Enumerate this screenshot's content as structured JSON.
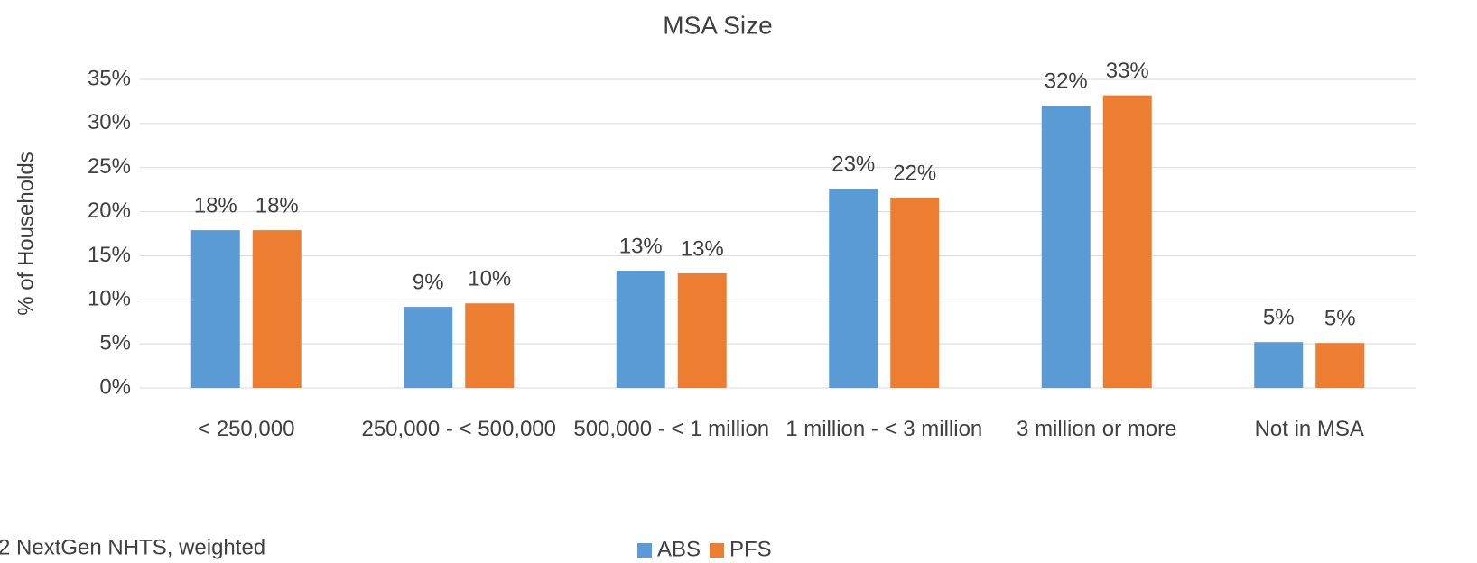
{
  "chart_data": {
    "type": "bar",
    "title": "MSA Size",
    "y_label": "% of Households",
    "note": "2 NextGen NHTS, weighted",
    "categories": [
      "< 250,000",
      "250,000 - < 500,000",
      "500,000 - < 1 million",
      "1 million - < 3 million",
      "3 million or more",
      "Not in MSA"
    ],
    "series": [
      {
        "name": "ABS",
        "color": "#5b9bd5",
        "values": [
          17.9,
          9.2,
          13.3,
          22.6,
          32.0,
          5.2
        ],
        "value_labels": [
          "18%",
          "9%",
          "13%",
          "23%",
          "32%",
          "5%"
        ]
      },
      {
        "name": "PFS",
        "color": "#ed7d31",
        "values": [
          17.9,
          9.6,
          13.0,
          21.6,
          33.2,
          5.1
        ],
        "value_labels": [
          "18%",
          "10%",
          "13%",
          "22%",
          "33%",
          "5%"
        ]
      }
    ],
    "ylim": [
      0,
      35
    ],
    "yticks": [
      {
        "value": 0,
        "label": "0%"
      },
      {
        "value": 5,
        "label": "5%"
      },
      {
        "value": 10,
        "label": "10%"
      },
      {
        "value": 15,
        "label": "15%"
      },
      {
        "value": 20,
        "label": "20%"
      },
      {
        "value": 25,
        "label": "25%"
      },
      {
        "value": 30,
        "label": "30%"
      },
      {
        "value": 35,
        "label": "35%"
      }
    ],
    "grid": true,
    "legend": "bottom"
  }
}
